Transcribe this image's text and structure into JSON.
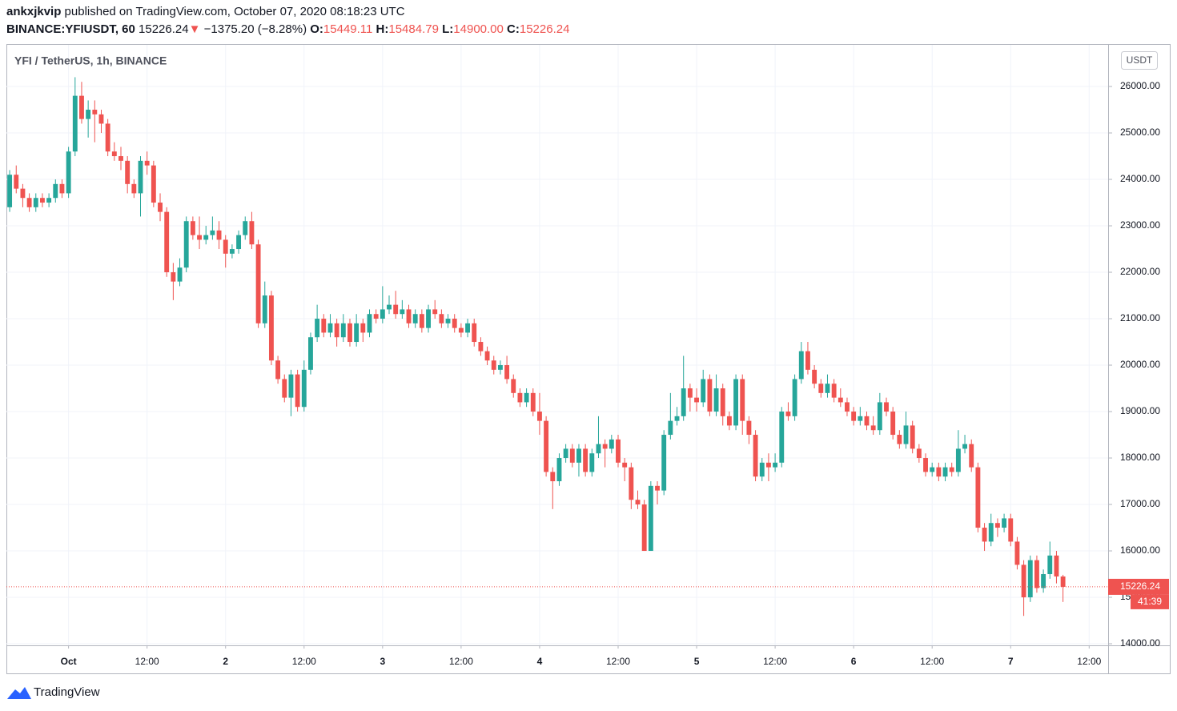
{
  "header": {
    "author": "ankxjkvip",
    "published": "published on TradingView.com, October 07, 2020 08:18:23 UTC",
    "symbol": "BINANCE:YFIUSDT, 60",
    "last": "15226.24",
    "arrow": "▼",
    "change": "−1375.20 (−8.28%)",
    "o_label": "O:",
    "o": "15449.11",
    "h_label": "H:",
    "h": "15484.79",
    "l_label": "L:",
    "l": "14900.00",
    "c_label": "C:",
    "c": "15226.24"
  },
  "chart_data": {
    "type": "candlestick",
    "legend": "YFI / TetherUS, 1h, BINANCE",
    "currency": "USDT",
    "up_color": "#26a69a",
    "down_color": "#ef5350",
    "grid": true,
    "last_price_label": "15226.24",
    "countdown": "41:39",
    "xlim": [
      "2020-09-30T14:30",
      "2020-10-07T14:54"
    ],
    "ylim": [
      13966,
      26897
    ],
    "yticks": [
      {
        "value": 14000,
        "label": "14000.00"
      },
      {
        "value": 15000,
        "label": "15000.00"
      },
      {
        "value": 16000,
        "label": "16000.00"
      },
      {
        "value": 17000,
        "label": "17000.00"
      },
      {
        "value": 18000,
        "label": "18000.00"
      },
      {
        "value": 19000,
        "label": "19000.00"
      },
      {
        "value": 20000,
        "label": "20000.00"
      },
      {
        "value": 21000,
        "label": "21000.00"
      },
      {
        "value": 22000,
        "label": "22000.00"
      },
      {
        "value": 23000,
        "label": "23000.00"
      },
      {
        "value": 24000,
        "label": "24000.00"
      },
      {
        "value": 25000,
        "label": "25000.00"
      },
      {
        "value": 26000,
        "label": "26000.00"
      }
    ],
    "xticks": [
      {
        "value": "2020-10-01T00:00",
        "label": "Oct"
      },
      {
        "value": "2020-10-01T12:00",
        "label": "12:00"
      },
      {
        "value": "2020-10-02T00:00",
        "label": "2"
      },
      {
        "value": "2020-10-02T12:00",
        "label": "12:00"
      },
      {
        "value": "2020-10-03T00:00",
        "label": "3"
      },
      {
        "value": "2020-10-03T12:00",
        "label": "12:00"
      },
      {
        "value": "2020-10-04T00:00",
        "label": "4"
      },
      {
        "value": "2020-10-04T12:00",
        "label": "12:00"
      },
      {
        "value": "2020-10-05T00:00",
        "label": "5"
      },
      {
        "value": "2020-10-05T12:00",
        "label": "12:00"
      },
      {
        "value": "2020-10-06T00:00",
        "label": "6"
      },
      {
        "value": "2020-10-06T12:00",
        "label": "12:00"
      },
      {
        "value": "2020-10-07T00:00",
        "label": "7"
      },
      {
        "value": "2020-10-07T12:00",
        "label": "12:00"
      }
    ],
    "x": [
      "2020-09-30T15:00",
      "2020-09-30T16:00",
      "2020-09-30T17:00",
      "2020-09-30T18:00",
      "2020-09-30T19:00",
      "2020-09-30T20:00",
      "2020-09-30T21:00",
      "2020-09-30T22:00",
      "2020-09-30T23:00",
      "2020-10-01T00:00",
      "2020-10-01T01:00",
      "2020-10-01T02:00",
      "2020-10-01T03:00",
      "2020-10-01T04:00",
      "2020-10-01T05:00",
      "2020-10-01T06:00",
      "2020-10-01T07:00",
      "2020-10-01T08:00",
      "2020-10-01T09:00",
      "2020-10-01T10:00",
      "2020-10-01T11:00",
      "2020-10-01T12:00",
      "2020-10-01T13:00",
      "2020-10-01T14:00",
      "2020-10-01T15:00",
      "2020-10-01T16:00",
      "2020-10-01T17:00",
      "2020-10-01T18:00",
      "2020-10-01T19:00",
      "2020-10-01T20:00",
      "2020-10-01T21:00",
      "2020-10-01T22:00",
      "2020-10-01T23:00",
      "2020-10-02T00:00",
      "2020-10-02T01:00",
      "2020-10-02T02:00",
      "2020-10-02T03:00",
      "2020-10-02T04:00",
      "2020-10-02T05:00",
      "2020-10-02T06:00",
      "2020-10-02T07:00",
      "2020-10-02T08:00",
      "2020-10-02T09:00",
      "2020-10-02T10:00",
      "2020-10-02T11:00",
      "2020-10-02T12:00",
      "2020-10-02T13:00",
      "2020-10-02T14:00",
      "2020-10-02T15:00",
      "2020-10-02T16:00",
      "2020-10-02T17:00",
      "2020-10-02T18:00",
      "2020-10-02T19:00",
      "2020-10-02T20:00",
      "2020-10-02T21:00",
      "2020-10-02T22:00",
      "2020-10-02T23:00",
      "2020-10-03T00:00",
      "2020-10-03T01:00",
      "2020-10-03T02:00",
      "2020-10-03T03:00",
      "2020-10-03T04:00",
      "2020-10-03T05:00",
      "2020-10-03T06:00",
      "2020-10-03T07:00",
      "2020-10-03T08:00",
      "2020-10-03T09:00",
      "2020-10-03T10:00",
      "2020-10-03T11:00",
      "2020-10-03T12:00",
      "2020-10-03T13:00",
      "2020-10-03T14:00",
      "2020-10-03T15:00",
      "2020-10-03T16:00",
      "2020-10-03T17:00",
      "2020-10-03T18:00",
      "2020-10-03T19:00",
      "2020-10-03T20:00",
      "2020-10-03T21:00",
      "2020-10-03T22:00",
      "2020-10-03T23:00",
      "2020-10-04T00:00",
      "2020-10-04T01:00",
      "2020-10-04T02:00",
      "2020-10-04T03:00",
      "2020-10-04T04:00",
      "2020-10-04T05:00",
      "2020-10-04T06:00",
      "2020-10-04T07:00",
      "2020-10-04T08:00",
      "2020-10-04T09:00",
      "2020-10-04T10:00",
      "2020-10-04T11:00",
      "2020-10-04T12:00",
      "2020-10-04T13:00",
      "2020-10-04T14:00",
      "2020-10-04T15:00",
      "2020-10-04T16:00",
      "2020-10-04T17:00",
      "2020-10-04T18:00",
      "2020-10-04T19:00",
      "2020-10-04T20:00",
      "2020-10-04T21:00",
      "2020-10-04T22:00",
      "2020-10-04T23:00",
      "2020-10-05T00:00",
      "2020-10-05T01:00",
      "2020-10-05T02:00",
      "2020-10-05T03:00",
      "2020-10-05T04:00",
      "2020-10-05T05:00",
      "2020-10-05T06:00",
      "2020-10-05T07:00",
      "2020-10-05T08:00",
      "2020-10-05T09:00",
      "2020-10-05T10:00",
      "2020-10-05T11:00",
      "2020-10-05T12:00",
      "2020-10-05T13:00",
      "2020-10-05T14:00",
      "2020-10-05T15:00",
      "2020-10-05T16:00",
      "2020-10-05T17:00",
      "2020-10-05T18:00",
      "2020-10-05T19:00",
      "2020-10-05T20:00",
      "2020-10-05T21:00",
      "2020-10-05T22:00",
      "2020-10-05T23:00",
      "2020-10-06T00:00",
      "2020-10-06T01:00",
      "2020-10-06T02:00",
      "2020-10-06T03:00",
      "2020-10-06T04:00",
      "2020-10-06T05:00",
      "2020-10-06T06:00",
      "2020-10-06T07:00",
      "2020-10-06T08:00",
      "2020-10-06T09:00",
      "2020-10-06T10:00",
      "2020-10-06T11:00",
      "2020-10-06T12:00",
      "2020-10-06T13:00",
      "2020-10-06T14:00",
      "2020-10-06T15:00",
      "2020-10-06T16:00",
      "2020-10-06T17:00",
      "2020-10-06T18:00",
      "2020-10-06T19:00",
      "2020-10-06T20:00",
      "2020-10-06T21:00",
      "2020-10-06T22:00",
      "2020-10-06T23:00",
      "2020-10-07T00:00",
      "2020-10-07T01:00",
      "2020-10-07T02:00",
      "2020-10-07T03:00",
      "2020-10-07T04:00",
      "2020-10-07T05:00",
      "2020-10-07T06:00",
      "2020-10-07T07:00",
      "2020-10-07T08:00"
    ],
    "open": [
      23400,
      24100,
      23800,
      23600,
      23400,
      23600,
      23500,
      23600,
      23900,
      23700,
      24600,
      25800,
      25300,
      25500,
      25400,
      25200,
      24600,
      24500,
      24400,
      23900,
      23700,
      24400,
      24300,
      23500,
      23300,
      22000,
      21800,
      22100,
      23100,
      22800,
      22700,
      22800,
      22900,
      22700,
      22400,
      22500,
      22800,
      23100,
      22600,
      20900,
      21500,
      20100,
      19700,
      19300,
      19800,
      19100,
      19900,
      20600,
      21000,
      20700,
      20900,
      20600,
      20900,
      20500,
      20900,
      20700,
      21100,
      21000,
      21200,
      21300,
      21100,
      21200,
      20900,
      21100,
      20800,
      21200,
      21100,
      20900,
      21000,
      20800,
      20700,
      20900,
      20500,
      20300,
      20100,
      19900,
      20000,
      19700,
      19400,
      19200,
      19400,
      19000,
      18800,
      17700,
      17500,
      18000,
      18200,
      17900,
      18200,
      17700,
      18100,
      18300,
      18200,
      18400,
      17900,
      17800,
      17100,
      17000,
      16000,
      17400,
      17300,
      18500,
      18800,
      18900,
      19500,
      19300,
      19200,
      19700,
      19000,
      19500,
      18900,
      18700,
      19700,
      18800,
      18500,
      17600,
      17900,
      17800,
      17900,
      19000,
      18900,
      19700,
      20300,
      19900,
      19600,
      19400,
      19600,
      19300,
      19200,
      19000,
      18800,
      18900,
      18700,
      18600,
      19200,
      19000,
      18500,
      18300,
      18700,
      18200,
      18000,
      17700,
      17800,
      17600,
      17800,
      17700,
      18200,
      18300,
      17800,
      16500,
      16200,
      16600,
      16500,
      16700,
      16200,
      15700,
      15000,
      15800,
      15200,
      15500,
      15900,
      15449.11
    ],
    "high": [
      24200,
      24300,
      23900,
      23700,
      23700,
      23700,
      23700,
      24000,
      24000,
      24700,
      26200,
      26100,
      25700,
      25700,
      25500,
      25300,
      24800,
      24700,
      24500,
      24000,
      24500,
      24600,
      24400,
      23700,
      23400,
      22200,
      22300,
      23200,
      23200,
      23200,
      23000,
      23200,
      23100,
      22800,
      22600,
      22900,
      23200,
      23300,
      22700,
      21800,
      21600,
      20200,
      19800,
      19900,
      19900,
      20100,
      20700,
      21300,
      21100,
      21100,
      21000,
      21100,
      21000,
      21100,
      21000,
      21200,
      21200,
      21700,
      21500,
      21600,
      21400,
      21300,
      21200,
      21200,
      21300,
      21400,
      21200,
      21100,
      21100,
      20900,
      21000,
      21000,
      20600,
      20400,
      20200,
      20100,
      20200,
      19800,
      19500,
      19500,
      19500,
      19400,
      18900,
      17800,
      18100,
      18300,
      18300,
      18300,
      18300,
      18200,
      18900,
      18400,
      18500,
      18500,
      18000,
      17900,
      17300,
      17100,
      17500,
      17500,
      18600,
      19400,
      19100,
      20200,
      19600,
      19500,
      19900,
      19800,
      19800,
      19600,
      19000,
      19800,
      19800,
      18900,
      18600,
      18000,
      18100,
      18100,
      19100,
      19200,
      19800,
      20500,
      20500,
      20000,
      19700,
      19800,
      19700,
      19500,
      19300,
      19100,
      19100,
      19000,
      18900,
      19400,
      19300,
      19100,
      18600,
      19000,
      18800,
      18300,
      18100,
      17900,
      17900,
      17900,
      17900,
      18600,
      18500,
      18400,
      17900,
      16600,
      16800,
      16700,
      16800,
      16800,
      16300,
      15800,
      15900,
      15900,
      15600,
      16200,
      16000,
      15484.79
    ],
    "low": [
      23300,
      23700,
      23400,
      23300,
      23300,
      23400,
      23400,
      23500,
      23600,
      23600,
      24500,
      25200,
      24900,
      24800,
      25000,
      24500,
      24400,
      24200,
      23700,
      23600,
      23200,
      24100,
      23400,
      23100,
      21900,
      21400,
      21700,
      22000,
      22700,
      22500,
      22600,
      22700,
      22500,
      22100,
      22300,
      22400,
      22700,
      22500,
      20800,
      20800,
      20000,
      19600,
      19200,
      18900,
      19000,
      19000,
      19800,
      20500,
      20600,
      20600,
      20400,
      20500,
      20400,
      20400,
      20500,
      20600,
      20900,
      20900,
      21100,
      21000,
      21000,
      20800,
      20800,
      20700,
      20700,
      21000,
      20800,
      20800,
      20700,
      20600,
      20600,
      20400,
      20200,
      20000,
      19800,
      19800,
      19600,
      19300,
      19100,
      19100,
      18900,
      18500,
      17600,
      16900,
      17400,
      17900,
      17800,
      17600,
      17600,
      17600,
      18000,
      17800,
      18100,
      17800,
      17500,
      16900,
      16900,
      16000,
      16000,
      17000,
      17200,
      18400,
      18700,
      18800,
      19000,
      19000,
      19100,
      18900,
      18900,
      18700,
      18600,
      18600,
      18500,
      18300,
      17500,
      17500,
      17500,
      17700,
      17800,
      18800,
      18800,
      19600,
      19800,
      19500,
      19300,
      19300,
      19200,
      19100,
      18900,
      18700,
      18700,
      18600,
      18500,
      18500,
      18900,
      18400,
      18200,
      18200,
      18100,
      17900,
      17600,
      17600,
      17500,
      17500,
      17600,
      17600,
      18100,
      17700,
      16400,
      16000,
      16100,
      16300,
      16400,
      16100,
      15600,
      14600,
      14900,
      15100,
      15100,
      15400,
      15300,
      14900
    ],
    "close": [
      24100,
      23800,
      23600,
      23400,
      23600,
      23500,
      23600,
      23900,
      23700,
      24600,
      25800,
      25300,
      25500,
      25400,
      25200,
      24600,
      24500,
      24400,
      23900,
      23700,
      24400,
      24300,
      23500,
      23300,
      22000,
      21800,
      22100,
      23100,
      22800,
      22700,
      22800,
      22900,
      22700,
      22400,
      22500,
      22800,
      23100,
      22600,
      20900,
      21500,
      20100,
      19700,
      19300,
      19800,
      19100,
      19900,
      20600,
      21000,
      20700,
      20900,
      20600,
      20900,
      20500,
      20900,
      20700,
      21100,
      21000,
      21200,
      21300,
      21100,
      21200,
      20900,
      21100,
      20800,
      21200,
      21100,
      20900,
      21000,
      20800,
      20700,
      20900,
      20500,
      20300,
      20100,
      19900,
      20000,
      19700,
      19400,
      19200,
      19400,
      19000,
      18800,
      17700,
      17500,
      18000,
      18200,
      17900,
      18200,
      17700,
      18100,
      18300,
      18200,
      18400,
      17900,
      17800,
      17100,
      17000,
      16000,
      17400,
      17300,
      18500,
      18800,
      18900,
      19500,
      19300,
      19200,
      19700,
      19000,
      19500,
      18900,
      18700,
      19700,
      18800,
      18500,
      17600,
      17900,
      17800,
      17900,
      19000,
      18900,
      19700,
      20300,
      19900,
      19600,
      19400,
      19600,
      19300,
      19200,
      19000,
      18800,
      18900,
      18700,
      18600,
      19200,
      19000,
      18500,
      18300,
      18700,
      18200,
      18000,
      17700,
      17800,
      17600,
      17800,
      17700,
      18200,
      18300,
      17800,
      16500,
      16200,
      16600,
      16500,
      16700,
      16200,
      15700,
      15000,
      15800,
      15200,
      15500,
      15900,
      15449.11,
      15226.24
    ]
  },
  "footer": {
    "brand": "TradingView"
  }
}
